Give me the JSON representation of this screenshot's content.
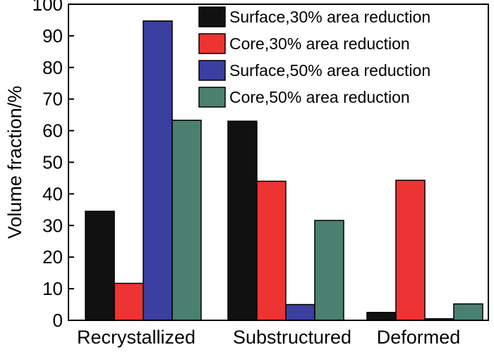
{
  "chart_data": {
    "type": "bar",
    "categories": [
      "Recrystallized",
      "Substructured",
      "Deformed"
    ],
    "series": [
      {
        "name": "Surface,30% area reduction",
        "values": [
          34.5,
          63.0,
          2.5
        ],
        "color": "#111111"
      },
      {
        "name": "Core,30% area reduction",
        "values": [
          11.7,
          44.0,
          44.3
        ],
        "color": "#ee3333"
      },
      {
        "name": "Surface,50% area reduction",
        "values": [
          94.7,
          5.0,
          0.5
        ],
        "color": "#3a3fa0"
      },
      {
        "name": "Core,50% area reduction",
        "values": [
          63.3,
          31.6,
          5.2
        ],
        "color": "#4a8070"
      }
    ],
    "xlabel": "",
    "ylabel": "Volume fraction/%",
    "ylim": [
      0,
      100
    ],
    "yticks": [
      0,
      10,
      20,
      30,
      40,
      50,
      60,
      70,
      80,
      90,
      100
    ],
    "grid": false,
    "legend_position": "top-right"
  }
}
